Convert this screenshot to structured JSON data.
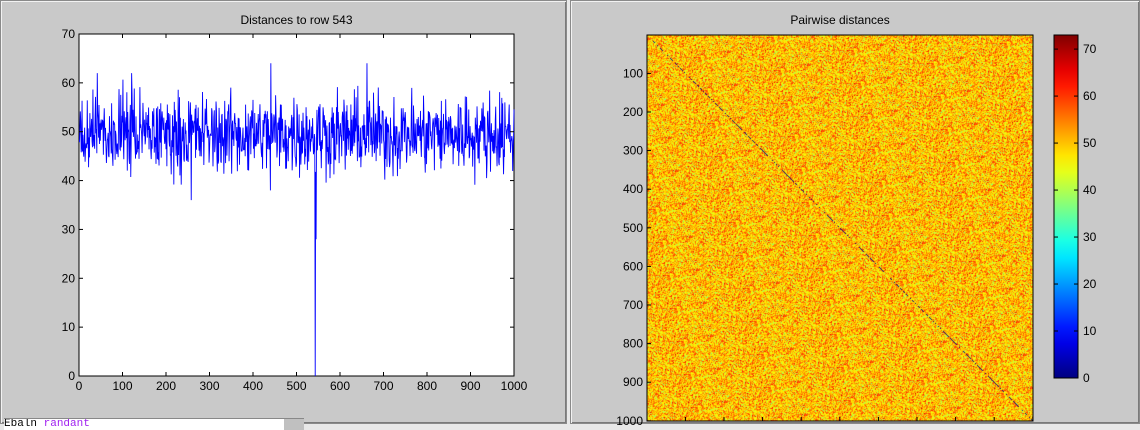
{
  "behind_window": {
    "keyword": "Ebaln",
    "text": "randant"
  },
  "chart_data": [
    {
      "type": "line",
      "title": "Distances to row 543",
      "xlim": [
        0,
        1000
      ],
      "ylim": [
        0,
        70
      ],
      "xticks": [
        0,
        100,
        200,
        300,
        400,
        500,
        600,
        700,
        800,
        900,
        1000
      ],
      "yticks": [
        0,
        10,
        20,
        30,
        40,
        50,
        60,
        70
      ],
      "color": "#0000ff",
      "n_points": 1000,
      "baseline_mean": 49.5,
      "baseline_range": [
        38,
        64
      ],
      "notable_points": [
        {
          "x": 543,
          "y": 0
        },
        {
          "x": 545,
          "y": 28
        },
        {
          "x": 441,
          "y": 64
        },
        {
          "x": 662,
          "y": 64
        },
        {
          "x": 42,
          "y": 62
        },
        {
          "x": 121,
          "y": 62
        },
        {
          "x": 258,
          "y": 36
        },
        {
          "x": 440,
          "y": 38
        }
      ]
    },
    {
      "type": "heatmap",
      "title": "Pairwise distances",
      "xlim": [
        1,
        1000
      ],
      "ylim": [
        1,
        1000
      ],
      "xticks": [
        100,
        200,
        300,
        400,
        500,
        600,
        700,
        800,
        900,
        1000
      ],
      "yticks": [
        100,
        200,
        300,
        400,
        500,
        600,
        700,
        800,
        900,
        1000
      ],
      "colormap": "jet",
      "colorbar": {
        "range": [
          0,
          73
        ],
        "ticks": [
          0,
          10,
          20,
          30,
          40,
          50,
          60,
          70
        ]
      },
      "typical_value": 50,
      "diagonal_value": 0
    }
  ]
}
